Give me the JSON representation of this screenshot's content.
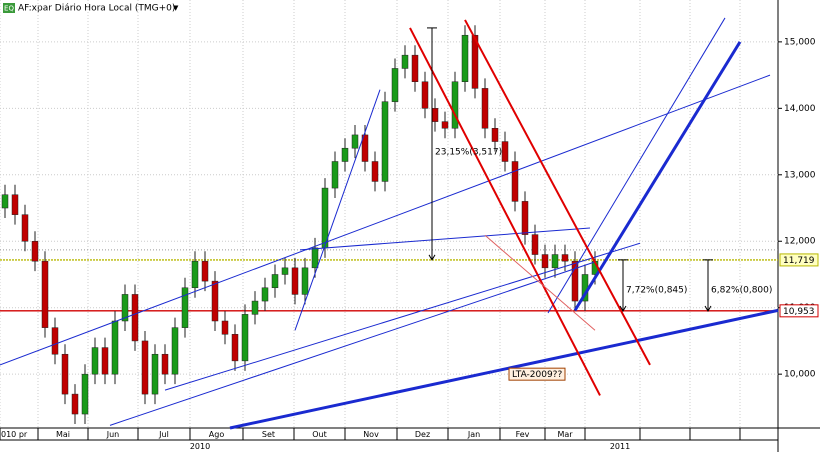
{
  "header": {
    "icon": "EQ",
    "title": "AF:xpar Diário Hora Local (TMG+0)",
    "menu": "▼"
  },
  "chart_data": {
    "type": "candlestick",
    "series": [
      {
        "name": "AF:xpar",
        "up_color": "#1a9a1a",
        "down_color": "#c00000",
        "open": [
          12.5,
          12.7,
          12.4,
          12.0,
          11.7,
          10.7,
          10.3,
          9.7,
          9.4,
          10.0,
          10.4,
          10.0,
          10.8,
          11.2,
          10.5,
          9.7,
          10.3,
          10.0,
          10.7,
          11.3,
          11.7,
          11.4,
          10.8,
          10.6,
          10.2,
          10.9,
          11.1,
          11.3,
          11.5,
          11.6,
          11.2,
          11.6,
          11.9,
          12.8,
          13.2,
          13.4,
          13.6,
          13.2,
          12.9,
          14.1,
          14.6,
          14.8,
          14.4,
          14.0,
          13.8,
          13.7,
          14.4,
          15.1,
          14.3,
          13.7,
          13.5,
          13.2,
          12.6,
          12.1,
          11.8,
          11.6,
          11.8,
          11.7,
          11.1,
          11.5
        ],
        "high": [
          12.85,
          12.85,
          12.55,
          12.15,
          11.85,
          10.85,
          10.45,
          9.85,
          10.15,
          10.55,
          10.55,
          10.95,
          11.35,
          11.35,
          10.65,
          10.45,
          10.45,
          10.85,
          11.45,
          11.85,
          11.85,
          11.55,
          10.95,
          10.75,
          11.05,
          11.25,
          11.45,
          11.65,
          11.75,
          11.75,
          11.75,
          12.05,
          12.95,
          13.35,
          13.55,
          13.75,
          13.75,
          13.35,
          14.25,
          14.75,
          14.95,
          14.95,
          14.55,
          14.15,
          13.95,
          14.55,
          15.25,
          15.25,
          14.45,
          13.85,
          13.65,
          13.35,
          12.75,
          12.25,
          11.95,
          11.95,
          11.95,
          11.85,
          11.65,
          11.85
        ],
        "low": [
          12.35,
          12.25,
          11.85,
          11.55,
          10.55,
          10.15,
          9.55,
          9.25,
          9.25,
          9.85,
          9.85,
          9.85,
          10.65,
          10.35,
          9.55,
          9.55,
          9.85,
          9.85,
          10.55,
          11.15,
          11.25,
          10.65,
          10.45,
          10.05,
          10.05,
          10.75,
          10.95,
          11.15,
          11.35,
          11.05,
          11.05,
          11.45,
          11.75,
          12.65,
          13.05,
          13.25,
          13.05,
          12.75,
          12.75,
          13.95,
          14.45,
          14.25,
          13.85,
          13.65,
          13.55,
          13.55,
          14.25,
          14.15,
          13.55,
          13.35,
          13.05,
          12.45,
          11.95,
          11.65,
          11.45,
          11.45,
          11.55,
          10.95,
          10.95,
          11.35
        ],
        "close": [
          12.7,
          12.4,
          12.0,
          11.7,
          10.7,
          10.3,
          9.7,
          9.4,
          10.0,
          10.4,
          10.0,
          10.8,
          11.2,
          10.5,
          9.7,
          10.3,
          10.0,
          10.7,
          11.3,
          11.7,
          11.4,
          10.8,
          10.6,
          10.2,
          10.9,
          11.1,
          11.3,
          11.5,
          11.6,
          11.2,
          11.6,
          11.9,
          12.8,
          13.2,
          13.4,
          13.6,
          13.2,
          12.9,
          14.1,
          14.6,
          14.8,
          14.4,
          14.0,
          13.8,
          13.7,
          14.4,
          15.1,
          14.3,
          13.7,
          13.5,
          13.2,
          12.6,
          12.1,
          11.8,
          11.6,
          11.8,
          11.7,
          11.1,
          11.5,
          11.7
        ]
      }
    ],
    "xlim": [
      -0.5,
      77.3
    ],
    "ylim": [
      9.19,
      15.63
    ],
    "yticks": [
      {
        "value": 10,
        "label": "10,000"
      },
      {
        "value": 11,
        "label": "11,000"
      },
      {
        "value": 12,
        "label": "12,000"
      },
      {
        "value": 13,
        "label": "13,000"
      },
      {
        "value": 14,
        "label": "14,000"
      },
      {
        "value": 15,
        "label": "15,000"
      }
    ],
    "xticks": [
      {
        "value": -0.5,
        "label": "010 pr"
      },
      {
        "value": 3.3,
        "label": "Mai"
      },
      {
        "value": 8.3,
        "label": "Jun"
      },
      {
        "value": 13.3,
        "label": "Jul"
      },
      {
        "value": 18.5,
        "label": "Ago"
      },
      {
        "value": 23.8,
        "label": "Set"
      },
      {
        "value": 28.9,
        "label": "Out"
      },
      {
        "value": 34.0,
        "label": "Nov"
      },
      {
        "value": 39.2,
        "label": "Dez"
      },
      {
        "value": 44.3,
        "label": "Jan"
      },
      {
        "value": 49.5,
        "label": "Fev"
      },
      {
        "value": 54.0,
        "label": "Mar"
      },
      {
        "value": 58.0,
        "label": null
      },
      {
        "value": 63.5,
        "label": null
      },
      {
        "value": 68.5,
        "label": null
      },
      {
        "value": 73.5,
        "label": null
      }
    ],
    "year_labels": [
      {
        "value": 19.5,
        "label": "2010"
      },
      {
        "value": 61.5,
        "label": "2011"
      }
    ],
    "grid": true,
    "levels": [
      {
        "value": 11.87,
        "color": "#999999"
      },
      {
        "value": 11.719,
        "label": "11,719",
        "color": "#b8b800"
      },
      {
        "value": 10.953,
        "label": "10,953",
        "color": "#d00000"
      }
    ],
    "trendlines": [
      {
        "x": [
          -0.5,
          76.5
        ],
        "y": [
          10.14,
          14.5
        ],
        "color": "#1a2ad0",
        "width": 1
      },
      {
        "x": [
          16,
          63.5
        ],
        "y": [
          9.76,
          11.97
        ],
        "color": "#1a2ad0",
        "width": 1
      },
      {
        "x": [
          10.5,
          59
        ],
        "y": [
          9.23,
          11.69
        ],
        "color": "#1a2ad0",
        "width": 1
      },
      {
        "x": [
          29,
          37.5
        ],
        "y": [
          10.66,
          14.28
        ],
        "color": "#1a2ad0",
        "width": 1
      },
      {
        "x": [
          54.3,
          72
        ],
        "y": [
          10.92,
          15.36
        ],
        "color": "#1a2ad0",
        "width": 1
      },
      {
        "x": [
          29.5,
          58.5
        ],
        "y": [
          11.87,
          12.2
        ],
        "color": "#1a2ad0",
        "width": 1
      },
      {
        "x": [
          57,
          73.5
        ],
        "y": [
          10.96,
          15.0
        ],
        "color": "#1a2ad0",
        "width": 3
      },
      {
        "x": [
          22.5,
          77.3
        ],
        "y": [
          9.19,
          10.96
        ],
        "color": "#1a2ad0",
        "width": 3
      },
      {
        "x": [
          40.5,
          59.5
        ],
        "y": [
          15.21,
          9.68
        ],
        "color": "#e00000",
        "width": 2
      },
      {
        "x": [
          46,
          64.5
        ],
        "y": [
          15.33,
          10.14
        ],
        "color": "#e00000",
        "width": 2
      },
      {
        "x": [
          48,
          59
        ],
        "y": [
          12.09,
          10.66
        ],
        "color": "#e06060",
        "width": 1
      }
    ],
    "measurements": [
      {
        "x": 42.7,
        "y": [
          15.21,
          11.72
        ],
        "label": "23,15%(3,517)"
      },
      {
        "x": 61.8,
        "y": [
          11.72,
          10.95
        ],
        "label": "7,72%(0,845)"
      },
      {
        "x": 70.3,
        "y": [
          11.72,
          10.95
        ],
        "label": "6,82%(0,800)"
      }
    ],
    "annotations": [
      {
        "x": 50.7,
        "y": 10.0,
        "label": "LTA-2009??"
      }
    ]
  }
}
